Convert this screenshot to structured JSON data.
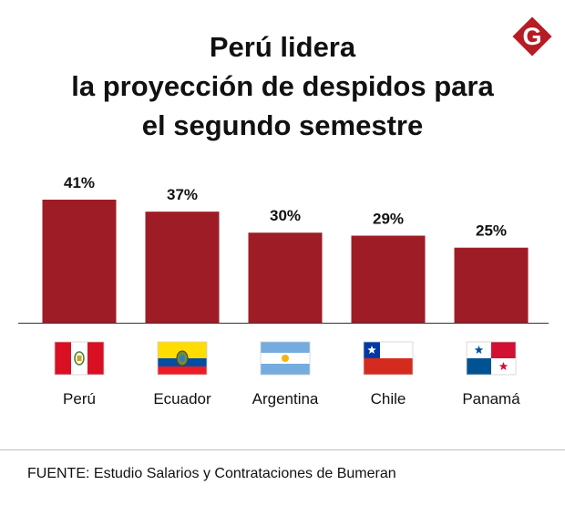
{
  "title": {
    "lines": [
      "Perú lidera",
      "la proyección de despidos para",
      "el segundo semestre"
    ]
  },
  "logo": {
    "letter": "G",
    "color": "#b71c25"
  },
  "chart_data": {
    "type": "bar",
    "title": "Perú lidera la proyección de despidos para el segundo semestre",
    "categories": [
      "Perú",
      "Ecuador",
      "Argentina",
      "Chile",
      "Panamá"
    ],
    "values": [
      41,
      37,
      30,
      29,
      25
    ],
    "value_labels": [
      "41%",
      "37%",
      "30%",
      "29%",
      "25%"
    ],
    "unit": "%",
    "bar_color": "#9e1c26",
    "xlabel": "",
    "ylabel": "",
    "ylim": [
      0,
      41
    ],
    "grid": false,
    "legend": "none"
  },
  "flags": [
    "peru-flag",
    "ecuador-flag",
    "argentina-flag",
    "chile-flag",
    "panama-flag"
  ],
  "source": "FUENTE: Estudio Salarios y Contrataciones de Bumeran"
}
